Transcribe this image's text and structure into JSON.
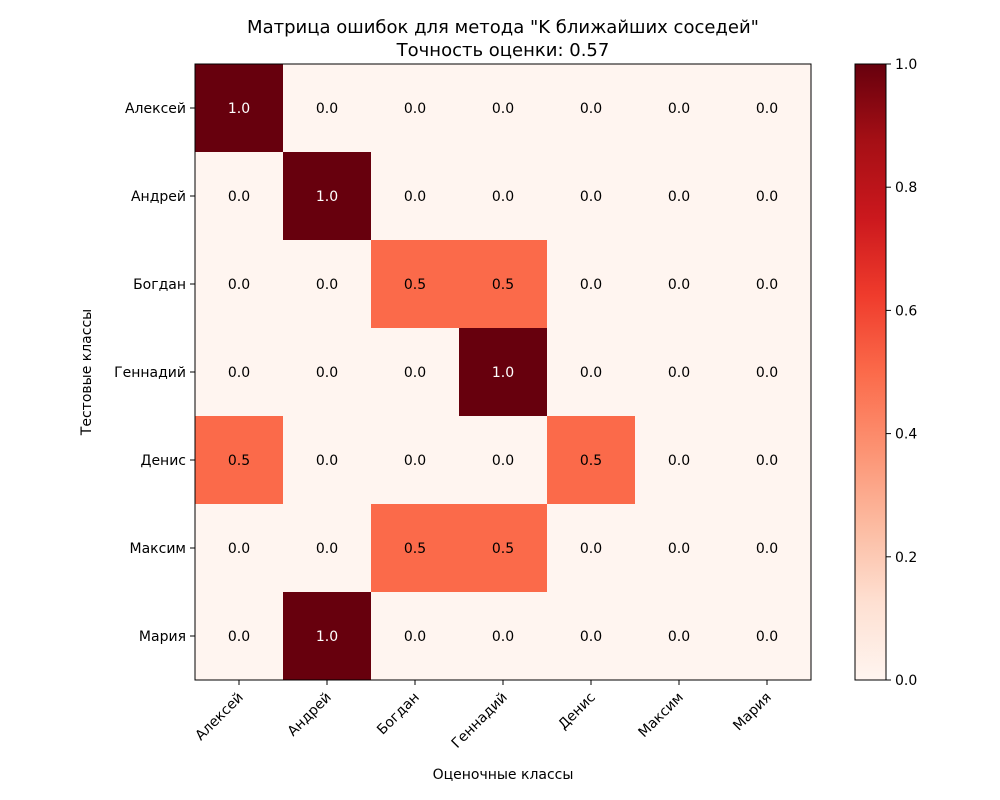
{
  "chart_data": {
    "type": "heatmap",
    "title": "Матрица ошибок для метода \"K ближайших соседей\"",
    "subtitle": "Точность оценки: 0.57",
    "xlabel": "Оценочные классы",
    "ylabel": "Тестовые классы",
    "x_categories": [
      "Алексей",
      "Андрей",
      "Богдан",
      "Геннадий",
      "Денис",
      "Максим",
      "Мария"
    ],
    "y_categories": [
      "Алексей",
      "Андрей",
      "Богдан",
      "Геннадий",
      "Денис",
      "Максим",
      "Мария"
    ],
    "values": [
      [
        1.0,
        0.0,
        0.0,
        0.0,
        0.0,
        0.0,
        0.0
      ],
      [
        0.0,
        1.0,
        0.0,
        0.0,
        0.0,
        0.0,
        0.0
      ],
      [
        0.0,
        0.0,
        0.5,
        0.5,
        0.0,
        0.0,
        0.0
      ],
      [
        0.0,
        0.0,
        0.0,
        1.0,
        0.0,
        0.0,
        0.0
      ],
      [
        0.5,
        0.0,
        0.0,
        0.0,
        0.5,
        0.0,
        0.0
      ],
      [
        0.0,
        0.0,
        0.5,
        0.5,
        0.0,
        0.0,
        0.0
      ],
      [
        0.0,
        1.0,
        0.0,
        0.0,
        0.0,
        0.0,
        0.0
      ]
    ],
    "cell_labels": [
      [
        "1.0",
        "0.0",
        "0.0",
        "0.0",
        "0.0",
        "0.0",
        "0.0"
      ],
      [
        "0.0",
        "1.0",
        "0.0",
        "0.0",
        "0.0",
        "0.0",
        "0.0"
      ],
      [
        "0.0",
        "0.0",
        "0.5",
        "0.5",
        "0.0",
        "0.0",
        "0.0"
      ],
      [
        "0.0",
        "0.0",
        "0.0",
        "1.0",
        "0.0",
        "0.0",
        "0.0"
      ],
      [
        "0.5",
        "0.0",
        "0.0",
        "0.0",
        "0.5",
        "0.0",
        "0.0"
      ],
      [
        "0.0",
        "0.0",
        "0.5",
        "0.5",
        "0.0",
        "0.0",
        "0.0"
      ],
      [
        "0.0",
        "1.0",
        "0.0",
        "0.0",
        "0.0",
        "0.0",
        "0.0"
      ]
    ],
    "colormap": "Reds",
    "colorbar": {
      "range": [
        0.0,
        1.0
      ],
      "ticks": [
        0.0,
        0.2,
        0.4,
        0.6,
        0.8,
        1.0
      ],
      "tick_labels": [
        "0.0",
        "0.2",
        "0.4",
        "0.6",
        "0.8",
        "1.0"
      ]
    },
    "grid": false
  }
}
